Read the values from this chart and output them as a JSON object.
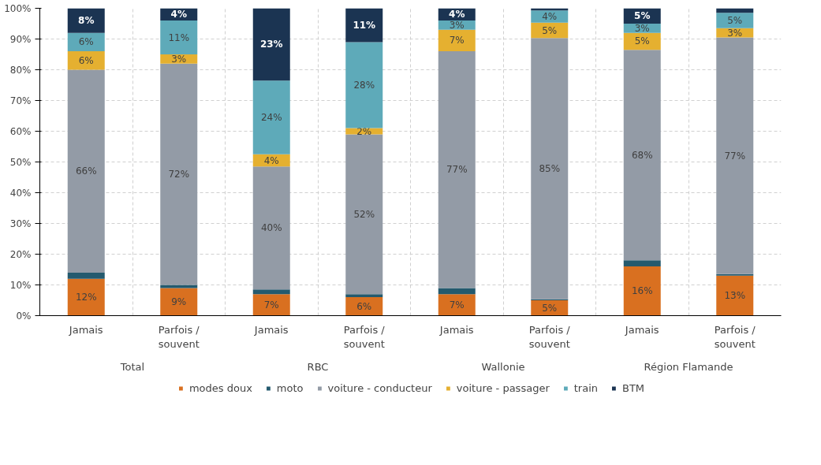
{
  "chart_data": {
    "type": "bar",
    "stacked": true,
    "categories": [
      "Jamais",
      "Parfois / souvent",
      "Jamais",
      "Parfois / souvent",
      "Jamais",
      "Parfois / souvent",
      "Jamais",
      "Parfois / souvent"
    ],
    "annotations": [
      "Total",
      "RBC",
      "Wallonie",
      "Région Flamande"
    ],
    "ylim": [
      0,
      100
    ],
    "yticks": [
      {
        "value": 0,
        "label": "0%"
      },
      {
        "value": 10,
        "label": "10%"
      },
      {
        "value": 20,
        "label": "20%"
      },
      {
        "value": 30,
        "label": "30%"
      },
      {
        "value": 40,
        "label": "40%"
      },
      {
        "value": 50,
        "label": "50%"
      },
      {
        "value": 60,
        "label": "60%"
      },
      {
        "value": 70,
        "label": "70%"
      },
      {
        "value": 80,
        "label": "80%"
      },
      {
        "value": 90,
        "label": "90%"
      },
      {
        "value": 100,
        "label": "100%"
      }
    ],
    "grid": true,
    "legend": "bottom",
    "series": [
      {
        "name": "modes doux",
        "color": "#d97020",
        "values": [
          12,
          9,
          7,
          6,
          7,
          5,
          16,
          13
        ],
        "value_labels": [
          "12%",
          "9%",
          "7%",
          "6%",
          "7%",
          "5%",
          "16%",
          "13%"
        ]
      },
      {
        "name": "moto",
        "color": "#245a6e",
        "values": [
          2,
          1,
          1.5,
          1,
          2,
          0.3,
          2,
          0.5
        ],
        "value_labels": [
          null,
          null,
          null,
          null,
          null,
          null,
          null,
          null
        ]
      },
      {
        "name": "voiture - conducteur",
        "color": "#939ba6",
        "values": [
          66,
          72,
          40,
          52,
          77,
          85,
          68.5,
          77
        ],
        "value_labels": [
          "66%",
          "72%",
          "40%",
          "52%",
          "77%",
          "85%",
          "68%",
          "77%"
        ]
      },
      {
        "name": "voiture - passager",
        "color": "#e5b030",
        "values": [
          6,
          3,
          4,
          2,
          7,
          5,
          5.5,
          3
        ],
        "value_labels": [
          "6%",
          "3%",
          "4%",
          "2%",
          "7%",
          "5%",
          "5%",
          "3%"
        ]
      },
      {
        "name": "train",
        "color": "#5eaab9",
        "values": [
          6,
          11,
          24,
          28,
          3,
          4,
          3,
          5
        ],
        "value_labels": [
          "6%",
          "11%",
          "24%",
          "28%",
          "3%",
          "4%",
          "3%",
          "5%"
        ]
      },
      {
        "name": "BTM",
        "color": "#1b3452",
        "values": [
          8,
          4,
          23.5,
          11,
          4,
          0.7,
          5,
          1.5
        ],
        "value_labels": [
          "8%",
          "4%",
          "23%",
          "11%",
          "4%",
          null,
          "5%",
          null
        ]
      }
    ]
  }
}
